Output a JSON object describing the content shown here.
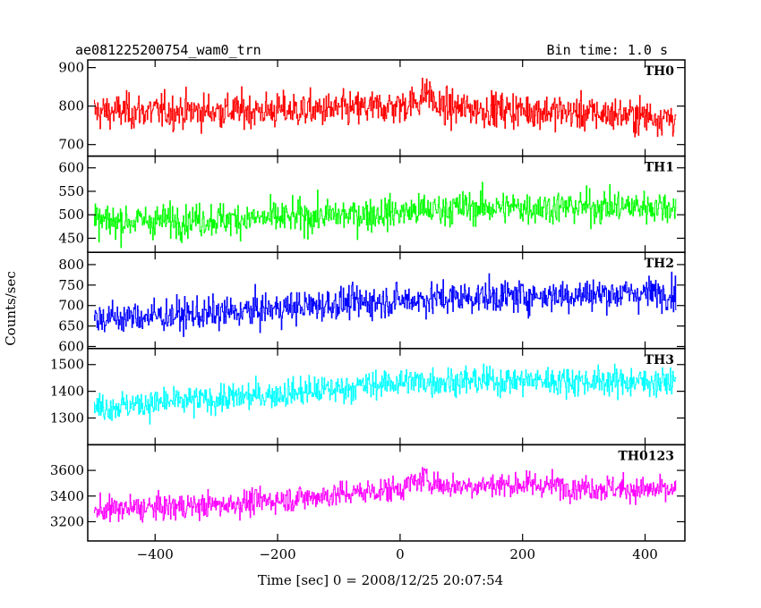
{
  "header": {
    "source": "ae081225200754_wam0_trn",
    "bin_time": "Bin time: 1.0 s"
  },
  "chart_data": {
    "type": "line",
    "xlabel": "Time [sec] 0 = 2008/12/25 20:07:54",
    "ylabel": "Counts/sec",
    "xlim": [
      -510,
      465
    ],
    "x_range_data": [
      -500,
      450
    ],
    "x_ticks": [
      -400,
      -200,
      0,
      200,
      400
    ],
    "bin_seconds": 1.0,
    "panels": [
      {
        "name": "TH0",
        "color": "#ff0000",
        "ylim": [
          670,
          920
        ],
        "y_ticks": [
          700,
          800,
          900
        ],
        "trend": [
          [
            -500,
            785
          ],
          [
            -100,
            790
          ],
          [
            0,
            800
          ],
          [
            30,
            815
          ],
          [
            45,
            840
          ],
          [
            60,
            795
          ],
          [
            200,
            790
          ],
          [
            450,
            770
          ]
        ],
        "noise_sd": 32
      },
      {
        "name": "TH1",
        "color": "#00ff00",
        "ylim": [
          420,
          625
        ],
        "y_ticks": [
          450,
          500,
          550,
          600
        ],
        "trend": [
          [
            -500,
            485
          ],
          [
            -200,
            493
          ],
          [
            0,
            505
          ],
          [
            100,
            515
          ],
          [
            450,
            518
          ]
        ],
        "noise_sd": 25
      },
      {
        "name": "TH2",
        "color": "#0000ff",
        "ylim": [
          595,
          830
        ],
        "y_ticks": [
          600,
          650,
          700,
          750,
          800
        ],
        "trend": [
          [
            -500,
            668
          ],
          [
            -300,
            680
          ],
          [
            -100,
            705
          ],
          [
            100,
            720
          ],
          [
            450,
            732
          ]
        ],
        "noise_sd": 28
      },
      {
        "name": "TH3",
        "color": "#00ffff",
        "ylim": [
          1200,
          1560
        ],
        "y_ticks": [
          1300,
          1400,
          1500
        ],
        "trend": [
          [
            -500,
            1340
          ],
          [
            -300,
            1370
          ],
          [
            -100,
            1410
          ],
          [
            0,
            1435
          ],
          [
            200,
            1440
          ],
          [
            450,
            1435
          ]
        ],
        "noise_sd": 38
      },
      {
        "name": "TH0123",
        "color": "#ff00ff",
        "ylim": [
          3050,
          3800
        ],
        "y_ticks": [
          3200,
          3400,
          3600
        ],
        "trend": [
          [
            -500,
            3290
          ],
          [
            -300,
            3330
          ],
          [
            -150,
            3390
          ],
          [
            0,
            3460
          ],
          [
            40,
            3540
          ],
          [
            70,
            3480
          ],
          [
            200,
            3490
          ],
          [
            450,
            3440
          ]
        ],
        "noise_sd": 70
      }
    ]
  }
}
